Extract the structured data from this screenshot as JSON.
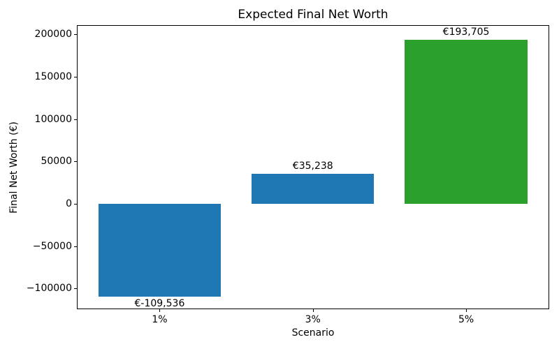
{
  "chart_data": {
    "type": "bar",
    "title": "Expected Final Net Worth",
    "xlabel": "Scenario",
    "ylabel": "Final Net Worth (€)",
    "categories": [
      "1%",
      "3%",
      "5%"
    ],
    "values": [
      -109536,
      35238,
      193705
    ],
    "value_labels": [
      "€-109,536",
      "€35,238",
      "€193,705"
    ],
    "bar_colors": [
      "#1f77b4",
      "#1f77b4",
      "#2ca02c"
    ],
    "bar_width_frac": 0.8,
    "xlim": [
      -0.54,
      2.54
    ],
    "ylim": [
      -124280,
      210700
    ],
    "yticks": [
      -100000,
      -50000,
      0,
      50000,
      100000,
      150000,
      200000
    ],
    "ytick_labels": [
      "−100000",
      "−50000",
      "0",
      "50000",
      "100000",
      "150000",
      "200000"
    ],
    "grid": false,
    "legend": null,
    "spine_color": "#000000",
    "background_color": "#ffffff"
  }
}
